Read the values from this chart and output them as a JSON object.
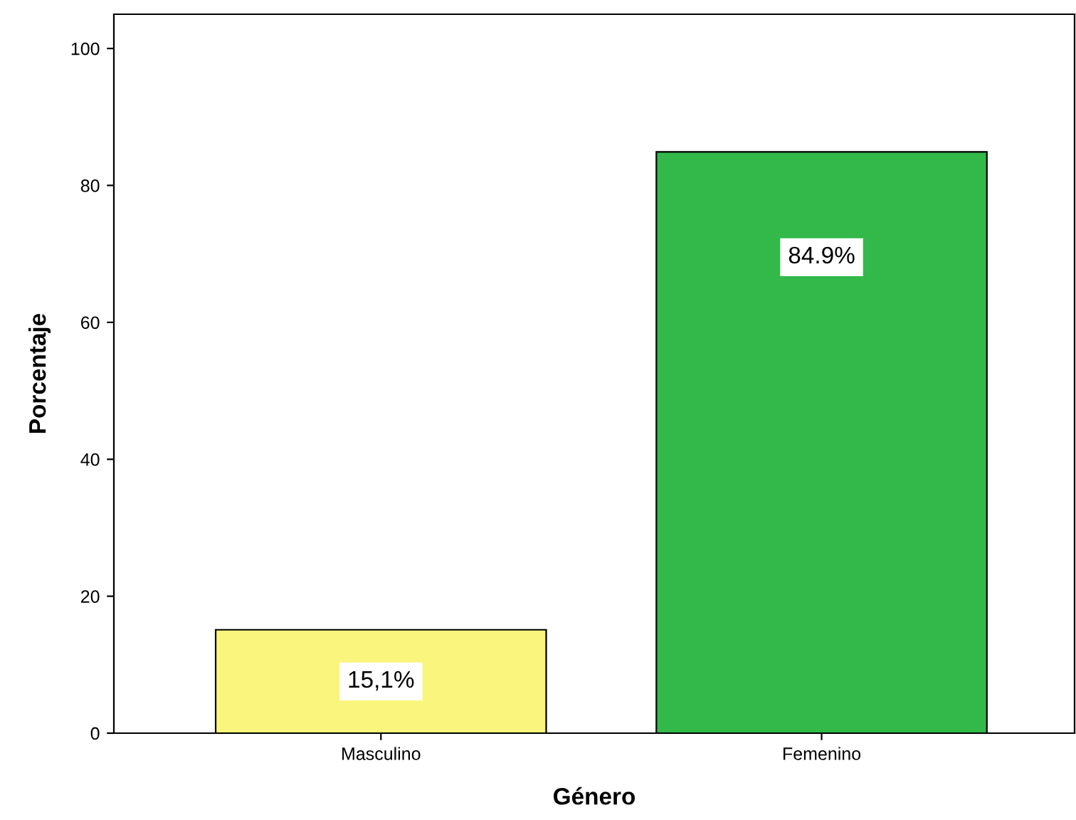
{
  "chart_data": {
    "type": "bar",
    "xlabel": "Género",
    "ylabel": "Porcentaje",
    "categories": [
      "Masculino",
      "Femenino"
    ],
    "values": [
      15.1,
      84.9
    ],
    "colors": [
      "#faf57c",
      "#33b84a"
    ],
    "value_labels": [
      "15,1%",
      "84.9%"
    ],
    "ylim": [
      0,
      105
    ],
    "yticks": [
      0,
      20,
      40,
      60,
      80,
      100
    ],
    "grid": false,
    "legend": false
  }
}
